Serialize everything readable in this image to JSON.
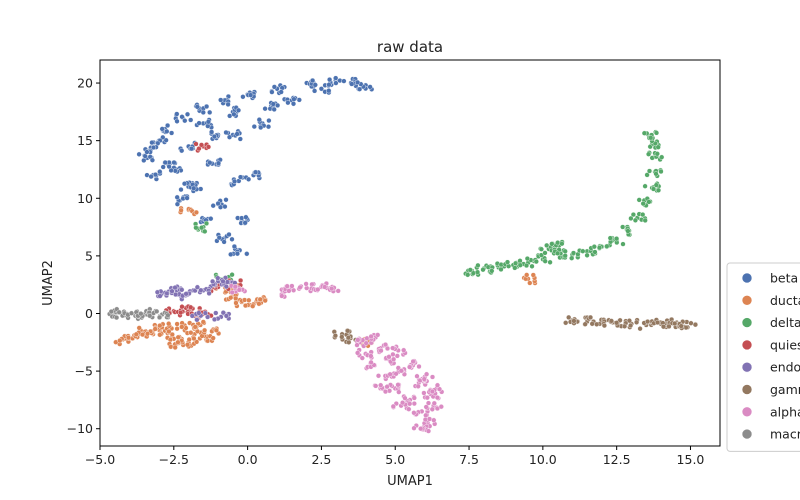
{
  "chart_data": {
    "type": "scatter",
    "title": "raw data",
    "xlabel": "UMAP1",
    "ylabel": "UMAP2",
    "xlim": [
      -5.0,
      16.0
    ],
    "ylim": [
      -11.5,
      22.0
    ],
    "x_ticks": [
      -5.0,
      -2.5,
      0.0,
      2.5,
      5.0,
      7.5,
      10.0,
      12.5,
      15.0
    ],
    "x_tick_labels": [
      "−5.0",
      "−2.5",
      "0.0",
      "2.5",
      "5.0",
      "7.5",
      "10.0",
      "12.5",
      "15.0"
    ],
    "y_ticks": [
      -10,
      -5,
      0,
      5,
      10,
      15,
      20
    ],
    "y_tick_labels": [
      "−10",
      "−5",
      "0",
      "5",
      "10",
      "15",
      "20"
    ],
    "grid": false,
    "legend_placement": "right, outside, clipped",
    "series": [
      {
        "name": "beta",
        "color": "#4c72b0",
        "points": [
          [
            -3.4,
            13.5
          ],
          [
            -3.2,
            12.0
          ],
          [
            -3.0,
            15.0
          ],
          [
            -2.8,
            16.0
          ],
          [
            -2.5,
            12.5
          ],
          [
            -2.2,
            17.0
          ],
          [
            -2.0,
            14.5
          ],
          [
            -1.8,
            11.0
          ],
          [
            -1.5,
            17.8
          ],
          [
            -1.2,
            13.0
          ],
          [
            -1.0,
            9.5
          ],
          [
            -0.8,
            18.5
          ],
          [
            -0.5,
            15.5
          ],
          [
            -0.3,
            11.5
          ],
          [
            -0.8,
            6.5
          ],
          [
            -0.3,
            5.5
          ],
          [
            -1.5,
            8.0
          ],
          [
            -2.3,
            9.8
          ],
          [
            0.0,
            19.0
          ],
          [
            0.5,
            16.5
          ],
          [
            1.0,
            19.5
          ],
          [
            1.5,
            18.5
          ],
          [
            2.0,
            20.0
          ],
          [
            2.5,
            19.5
          ],
          [
            3.0,
            20.2
          ],
          [
            3.5,
            20.0
          ],
          [
            4.0,
            19.8
          ],
          [
            -2.0,
            11.0
          ],
          [
            -0.2,
            8.0
          ],
          [
            0.2,
            12.0
          ],
          [
            -3.3,
            14.2
          ],
          [
            -2.7,
            13.0
          ],
          [
            -1.0,
            15.5
          ],
          [
            0.8,
            18.0
          ],
          [
            -1.5,
            16.5
          ],
          [
            -0.5,
            17.5
          ]
        ]
      },
      {
        "name": "ductal",
        "color": "#dd8452",
        "points": [
          [
            -4.3,
            -2.3
          ],
          [
            -3.8,
            -2.0
          ],
          [
            -3.2,
            -1.8
          ],
          [
            -2.8,
            -1.5
          ],
          [
            -2.5,
            -2.2
          ],
          [
            -2.2,
            -1.2
          ],
          [
            -2.0,
            -2.5
          ],
          [
            -1.8,
            -1.8
          ],
          [
            -1.6,
            -1.0
          ],
          [
            -1.4,
            -2.3
          ],
          [
            -1.2,
            -1.5
          ],
          [
            -2.9,
            -1.2
          ],
          [
            -2.4,
            -2.6
          ],
          [
            -3.5,
            -1.6
          ],
          [
            -0.5,
            1.5
          ],
          [
            -0.2,
            1.0
          ],
          [
            0.2,
            0.8
          ],
          [
            0.6,
            1.2
          ],
          [
            -0.5,
            2.2
          ],
          [
            -0.8,
            2.5
          ],
          [
            -2.0,
            9.0
          ],
          [
            4.0,
            -2.5
          ],
          [
            9.5,
            3.0
          ]
        ]
      },
      {
        "name": "delta",
        "color": "#55a868",
        "points": [
          [
            7.6,
            3.7
          ],
          [
            8.0,
            3.9
          ],
          [
            8.5,
            4.0
          ],
          [
            9.0,
            4.2
          ],
          [
            9.5,
            4.4
          ],
          [
            10.0,
            4.7
          ],
          [
            10.2,
            5.6
          ],
          [
            10.4,
            5.9
          ],
          [
            10.6,
            5.2
          ],
          [
            11.0,
            5.1
          ],
          [
            11.5,
            5.4
          ],
          [
            12.0,
            5.8
          ],
          [
            12.5,
            6.3
          ],
          [
            12.9,
            7.2
          ],
          [
            13.2,
            8.3
          ],
          [
            13.5,
            9.6
          ],
          [
            13.7,
            10.9
          ],
          [
            13.8,
            12.3
          ],
          [
            13.8,
            13.6
          ],
          [
            13.7,
            14.7
          ],
          [
            13.6,
            15.4
          ],
          [
            -1.5,
            7.5
          ],
          [
            -0.8,
            3.0
          ]
        ]
      },
      {
        "name": "quiescent",
        "color": "#c44e52",
        "points": [
          [
            -2.5,
            0.2
          ],
          [
            -2.0,
            0.3
          ],
          [
            -1.5,
            0.1
          ],
          [
            -1.8,
            -0.2
          ],
          [
            -1.0,
            2.3
          ],
          [
            -0.5,
            2.5
          ],
          [
            -1.5,
            14.5
          ]
        ]
      },
      {
        "name": "endothelial",
        "color": "#8172b3",
        "points": [
          [
            -2.8,
            1.8
          ],
          [
            -2.4,
            2.0
          ],
          [
            -2.0,
            1.8
          ],
          [
            -1.5,
            2.0
          ],
          [
            -1.0,
            2.8
          ],
          [
            -0.6,
            2.7
          ],
          [
            -2.2,
            1.5
          ],
          [
            -0.9,
            -0.3
          ],
          [
            -1.6,
            -0.2
          ]
        ]
      },
      {
        "name": "gamma",
        "color": "#937860",
        "points": [
          [
            11.0,
            -0.6
          ],
          [
            11.5,
            -0.7
          ],
          [
            12.0,
            -0.8
          ],
          [
            12.5,
            -0.9
          ],
          [
            13.0,
            -0.9
          ],
          [
            13.5,
            -1.0
          ],
          [
            14.0,
            -0.9
          ],
          [
            14.3,
            -0.8
          ],
          [
            14.6,
            -0.9
          ],
          [
            14.9,
            -1.2
          ],
          [
            3.2,
            -1.8
          ],
          [
            3.4,
            -2.2
          ]
        ]
      },
      {
        "name": "alpha",
        "color": "#da8bc3",
        "points": [
          [
            3.8,
            -2.5
          ],
          [
            4.0,
            -3.5
          ],
          [
            4.2,
            -2.2
          ],
          [
            4.3,
            -4.5
          ],
          [
            4.5,
            -3.0
          ],
          [
            4.7,
            -5.5
          ],
          [
            4.8,
            -4.0
          ],
          [
            5.0,
            -6.5
          ],
          [
            5.1,
            -3.2
          ],
          [
            5.3,
            -5.0
          ],
          [
            5.5,
            -7.5
          ],
          [
            5.6,
            -4.5
          ],
          [
            5.8,
            -6.0
          ],
          [
            5.9,
            -8.5
          ],
          [
            6.0,
            -5.5
          ],
          [
            6.1,
            -9.5
          ],
          [
            6.2,
            -7.0
          ],
          [
            6.4,
            -6.5
          ],
          [
            5.2,
            -8.0
          ],
          [
            4.5,
            -6.5
          ],
          [
            1.2,
            1.8
          ],
          [
            1.5,
            2.2
          ],
          [
            2.0,
            2.2
          ],
          [
            2.5,
            2.3
          ],
          [
            2.8,
            2.2
          ],
          [
            -0.3,
            2.2
          ],
          [
            5.9,
            -10.0
          ],
          [
            6.3,
            -8.0
          ]
        ]
      },
      {
        "name": "macrophage",
        "color": "#8c8c8c",
        "points": [
          [
            -4.5,
            -0.1
          ],
          [
            -4.2,
            0.0
          ],
          [
            -3.8,
            -0.2
          ],
          [
            -3.5,
            -0.1
          ],
          [
            -3.2,
            0.0
          ],
          [
            -2.9,
            -0.1
          ]
        ]
      }
    ]
  }
}
